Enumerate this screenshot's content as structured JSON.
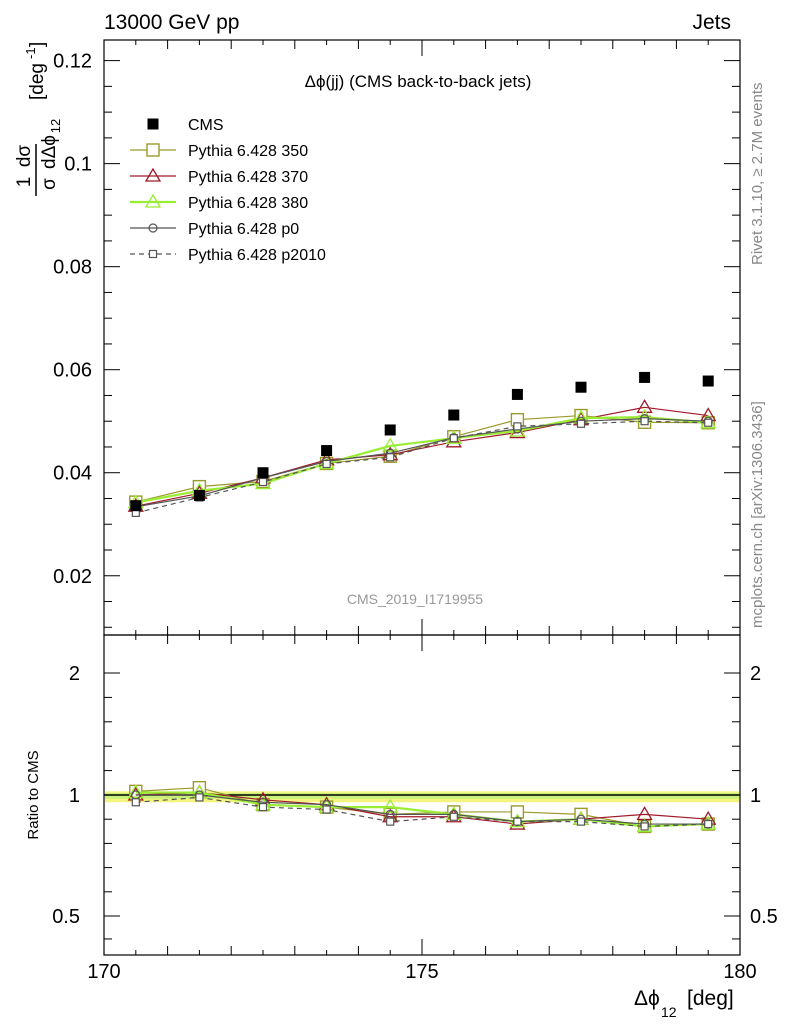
{
  "header": {
    "left": "13000 GeV pp",
    "right": "Jets"
  },
  "side_labels": {
    "right_top": "Rivet 3.1.10, ≥ 2.7M events",
    "right_bottom": "mcplots.cern.ch [arXiv:1306.3436]"
  },
  "chart_data": {
    "type": "scatter",
    "title": "Δϕ(jj) (CMS back-to-back jets)",
    "analysis_label": "CMS_2019_I1719955",
    "xlabel": "Δϕ",
    "xlabel_sub": "12",
    "xlabel_unit": "[deg]",
    "ylabel_ratio": "Ratio to CMS",
    "xlim": [
      170,
      180
    ],
    "ylim": [
      0.0085,
      0.124
    ],
    "ratio_ylim": [
      0.33,
      2.3
    ],
    "x_ticks": [
      "170",
      "175",
      "180"
    ],
    "y_ticks": [
      "0.02",
      "0.04",
      "0.06",
      "0.08",
      "0.1",
      "0.12"
    ],
    "ratio_ticks": [
      "0.5",
      "1",
      "2"
    ],
    "x": [
      170.5,
      171.5,
      172.5,
      173.5,
      174.5,
      175.5,
      176.5,
      177.5,
      178.5,
      179.5
    ],
    "legend_position": "top-left",
    "series": [
      {
        "name": "CMS",
        "color": "#000000",
        "marker": "filled-square",
        "line": "none",
        "values": [
          0.0336,
          0.0356,
          0.04,
          0.0443,
          0.0483,
          0.0512,
          0.0552,
          0.0566,
          0.0585,
          0.0578
        ],
        "ratio": [
          1.0,
          1.0,
          1.0,
          1.0,
          1.0,
          1.0,
          1.0,
          1.0,
          1.0,
          1.0
        ]
      },
      {
        "name": "Pythia 6.428 350",
        "color": "#9a9a2a",
        "marker": "open-square",
        "line": "solid",
        "values": [
          0.0343,
          0.0373,
          0.0383,
          0.0418,
          0.0432,
          0.047,
          0.0503,
          0.0511,
          0.0498,
          0.0497
        ],
        "ratio": [
          1.03,
          1.06,
          0.96,
          0.95,
          0.92,
          0.93,
          0.93,
          0.92,
          0.87,
          0.88
        ]
      },
      {
        "name": "Pythia 6.428 370",
        "color": "#a01a2a",
        "marker": "open-triangle",
        "line": "solid",
        "values": [
          0.0335,
          0.036,
          0.039,
          0.0425,
          0.0435,
          0.046,
          0.0478,
          0.0503,
          0.0527,
          0.0511
        ],
        "ratio": [
          1.0,
          1.02,
          0.98,
          0.96,
          0.91,
          0.91,
          0.88,
          0.9,
          0.92,
          0.9
        ]
      },
      {
        "name": "Pythia 6.428 380",
        "color": "#99ee33",
        "marker": "open-triangle",
        "line": "solid",
        "values": [
          0.0342,
          0.0365,
          0.0379,
          0.0418,
          0.0452,
          0.0467,
          0.0481,
          0.0506,
          0.0508,
          0.0497
        ],
        "ratio": [
          1.02,
          1.02,
          0.96,
          0.95,
          0.95,
          0.92,
          0.89,
          0.9,
          0.87,
          0.88
        ]
      },
      {
        "name": "Pythia 6.428 p0",
        "color": "#555555",
        "marker": "open-circle",
        "line": "solid",
        "values": [
          0.0334,
          0.0355,
          0.039,
          0.0422,
          0.0438,
          0.0468,
          0.0485,
          0.05,
          0.0505,
          0.05
        ],
        "ratio": [
          1.0,
          1.0,
          0.97,
          0.96,
          0.92,
          0.92,
          0.89,
          0.9,
          0.88,
          0.88
        ]
      },
      {
        "name": "Pythia 6.428 p2010",
        "color": "#555555",
        "marker": "open-square-small",
        "line": "dashed",
        "values": [
          0.0322,
          0.0352,
          0.0382,
          0.0417,
          0.043,
          0.0467,
          0.049,
          0.0495,
          0.05,
          0.0497
        ],
        "ratio": [
          0.97,
          0.99,
          0.95,
          0.94,
          0.89,
          0.91,
          0.89,
          0.89,
          0.87,
          0.88
        ]
      }
    ],
    "data_uncertainty_band": {
      "color": "#f0f060",
      "inner_color": "#bff07a"
    }
  }
}
